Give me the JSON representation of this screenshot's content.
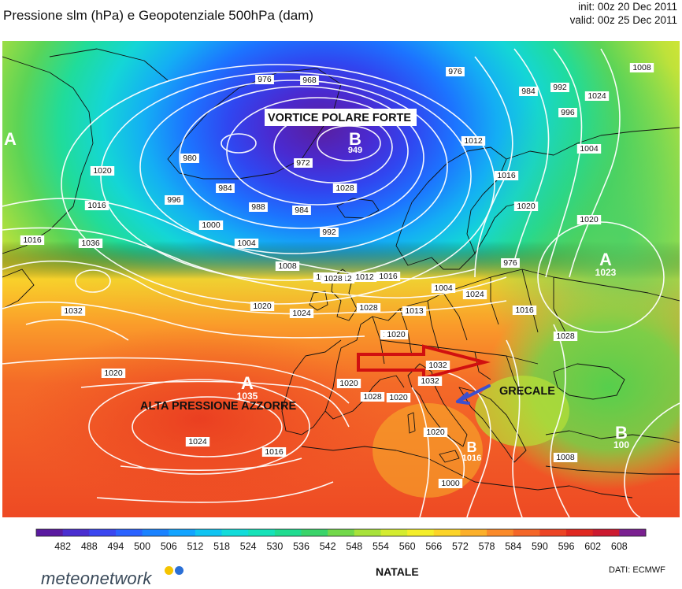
{
  "header": {
    "title": "Pressione slm (hPa) e Geopotenziale 500hPa (dam)",
    "init": "init: 00z 20 Dec 2011",
    "valid": "valid: 00z 25 Dec 2011"
  },
  "map": {
    "annotations": {
      "polar_vortex": "VORTICE POLARE FORTE",
      "azores_high": "ALTA PRESSIONE AZZORRE",
      "grecale": "GRECALE"
    },
    "pressure_centers": [
      {
        "letter": "A",
        "value": ""
      },
      {
        "letter": "B",
        "value": "949"
      },
      {
        "letter": "A",
        "value": "1023"
      },
      {
        "letter": "A",
        "value": "1035"
      },
      {
        "letter": "B",
        "value": "100"
      },
      {
        "letter": "B",
        "value": "1016"
      }
    ],
    "isobar_labels": [
      "976",
      "968",
      "976",
      "972",
      "980",
      "984",
      "988",
      "984",
      "992",
      "996",
      "1000",
      "1004",
      "1008",
      "1012",
      "1016",
      "1020",
      "1024",
      "1028",
      "1032",
      "1036",
      "1016",
      "1020",
      "1016",
      "1016",
      "1020",
      "1024",
      "1028",
      "1032",
      "1028",
      "1020",
      "1024",
      "1016",
      "1020",
      "1000",
      "1004",
      "1008",
      "1012",
      "1016",
      "1020",
      "1024",
      "984",
      "992",
      "996",
      "1004",
      "1008",
      "1012",
      "1020",
      "1016",
      "1020",
      "1013",
      "1020",
      "1032",
      "1028",
      "1028",
      "976",
      "1020",
      "1032"
    ],
    "arrow_colors": {
      "red": "#d01010",
      "blue": "#3c4fd0"
    }
  },
  "colorbar": {
    "unit": "dam",
    "ticks": [
      "482",
      "488",
      "494",
      "500",
      "506",
      "512",
      "518",
      "524",
      "530",
      "536",
      "542",
      "548",
      "554",
      "560",
      "566",
      "572",
      "578",
      "584",
      "590",
      "596",
      "602",
      "608"
    ],
    "colors": [
      "#5a1aa0",
      "#4a2ed0",
      "#3a46f0",
      "#2a62ff",
      "#1a82ff",
      "#12a4ff",
      "#10c4f2",
      "#12dcda",
      "#16e2b8",
      "#20dc90",
      "#3ad46a",
      "#72d84a",
      "#a8e23a",
      "#d4ec30",
      "#f4ee2a",
      "#fcd428",
      "#fcb02a",
      "#fa8a2a",
      "#f46628",
      "#ec4424",
      "#e02820",
      "#cc1a30",
      "#7a2090"
    ]
  },
  "footer": {
    "label": "NATALE",
    "source": "DATI:  ECMWF",
    "logo": "meteonetwork",
    "logo_dot_colors": [
      "#f5c400",
      "#2a6fd6"
    ]
  }
}
